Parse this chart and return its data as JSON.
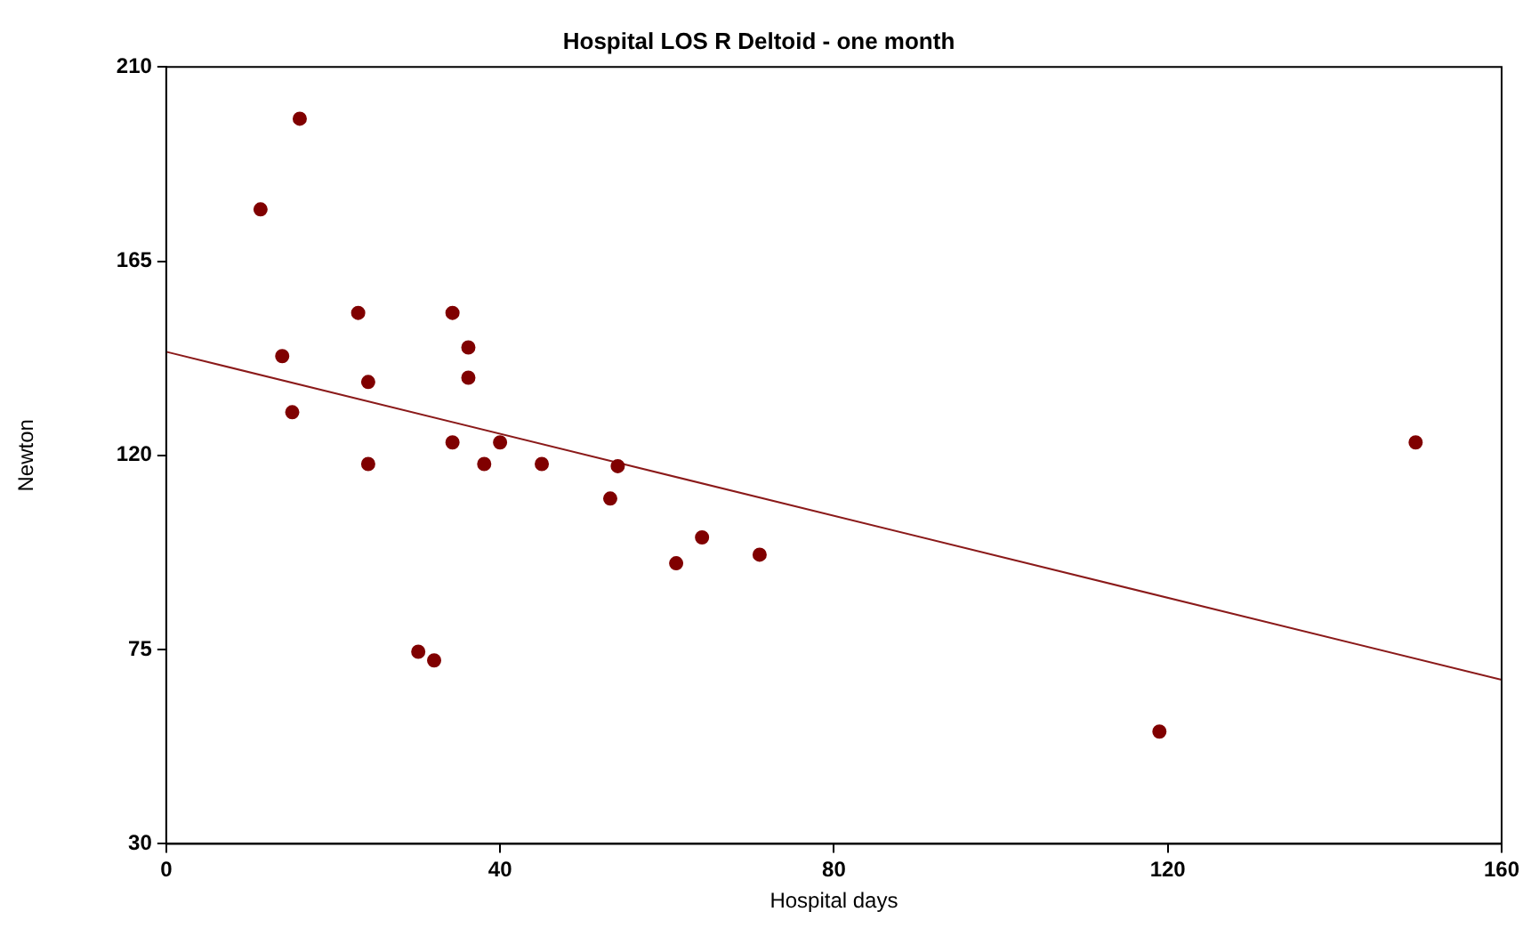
{
  "chart_data": {
    "type": "scatter",
    "title": "Hospital LOS R Deltoid - one month",
    "xlabel": "Hospital days",
    "ylabel": "Newton",
    "xlim": [
      0,
      160
    ],
    "xticks": [
      0,
      40,
      80,
      120,
      160
    ],
    "ylim": [
      30,
      210
    ],
    "yticks": [
      30,
      75,
      120,
      165,
      210
    ],
    "grid": false,
    "legend": false,
    "marker": "circle",
    "series": [
      {
        "color": "#800000",
        "x": [
          11.3,
          16,
          13.9,
          15.1,
          23,
          24.2,
          24.2,
          30.2,
          32.1,
          34.3,
          34.3,
          36.2,
          36.2,
          38.1,
          40,
          45,
          53.2,
          54.1,
          61.1,
          64.2,
          71.1,
          119,
          149.7
        ],
        "values": [
          177,
          198,
          143,
          130,
          153,
          137,
          118,
          74.5,
          72.5,
          153,
          123,
          145,
          138,
          118,
          123,
          118,
          110,
          117.5,
          95,
          101,
          97,
          56,
          123
        ]
      },
      {
        "type": "line",
        "color": "#8b1a1a",
        "marker": "none",
        "x": [
          0,
          160
        ],
        "values": [
          144,
          68
        ]
      }
    ]
  }
}
